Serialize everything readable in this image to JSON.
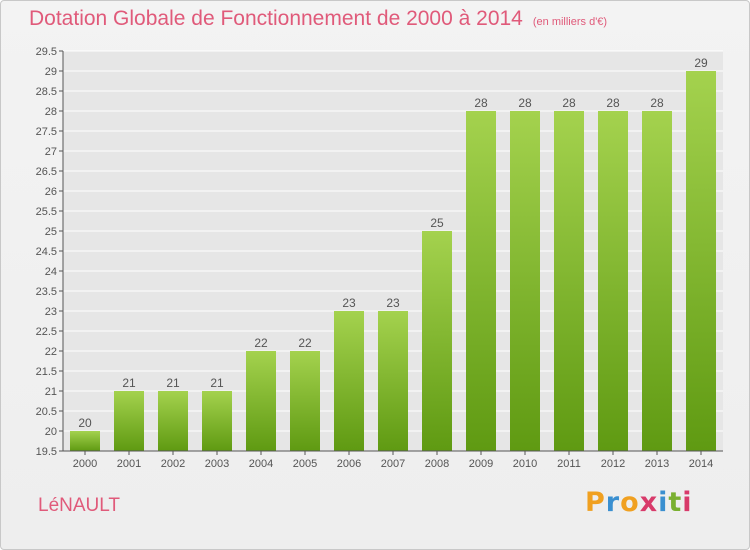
{
  "page": {
    "title": "Dotation Globale de Fonctionnement de 2000 à 2014",
    "subtitle": "(en milliers d'€)",
    "commune": "LéNAULT",
    "logo": {
      "letters": [
        "P",
        "r",
        "o",
        "x",
        "i",
        "t",
        "i"
      ],
      "colors": [
        "#f0a020",
        "#3a8fd0",
        "#f0a020",
        "#d83a6a",
        "#3a8fd0",
        "#7ab030",
        "#d83a6a"
      ]
    }
  },
  "chart_data": {
    "type": "bar",
    "title": "Dotation Globale de Fonctionnement de 2000 à 2014",
    "subtitle": "(en milliers d'€)",
    "categories": [
      "2000",
      "2001",
      "2002",
      "2003",
      "2004",
      "2005",
      "2006",
      "2007",
      "2008",
      "2009",
      "2010",
      "2011",
      "2012",
      "2013",
      "2014"
    ],
    "values": [
      20,
      21,
      21,
      21,
      22,
      22,
      23,
      23,
      25,
      28,
      28,
      28,
      28,
      28,
      29
    ],
    "value_labels": [
      "20",
      "21",
      "21",
      "21",
      "22",
      "22",
      "23",
      "23",
      "25",
      "28",
      "28",
      "28",
      "28",
      "28",
      "29"
    ],
    "ylim": [
      19.5,
      29.5
    ],
    "yticks": [
      "19.5",
      "20",
      "20.5",
      "21",
      "21.5",
      "22",
      "22.5",
      "23",
      "23.5",
      "24",
      "24.5",
      "25",
      "25.5",
      "26",
      "26.5",
      "27",
      "27.5",
      "28",
      "28.5",
      "29",
      "29.5"
    ],
    "grid": true,
    "colors": {
      "bar_top": "#a4d24e",
      "bar_bottom": "#5f9a12",
      "grid": "#ffffff",
      "axis": "#555555"
    }
  }
}
